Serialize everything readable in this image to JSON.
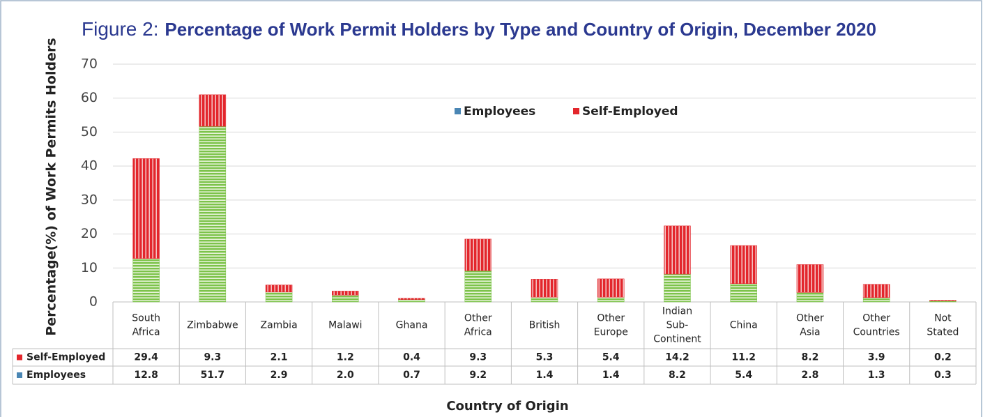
{
  "chart_data": {
    "type": "stacked_bar",
    "figure_label": "Figure 2:",
    "title": "Percentage of Work Permit Holders by Type and Country of Origin, December 2020",
    "y_label": "Percentage(%) of Work Permits Holders",
    "x_label": "Country of Origin",
    "categories": [
      "South Africa",
      "Zimbabwe",
      "Zambia",
      "Malawi",
      "Ghana",
      "Other Africa",
      "British",
      "Other Europe",
      "Indian Sub-Continent",
      "China",
      "Other Asia",
      "Other Countries",
      "Not Stated"
    ],
    "series": [
      {
        "name": "Employees",
        "color": "#7cc34a",
        "legend_color": "#4a86b4",
        "values": [
          12.8,
          51.7,
          2.9,
          2.0,
          0.7,
          9.2,
          1.4,
          1.4,
          8.2,
          5.4,
          2.8,
          1.3,
          0.3
        ],
        "value_labels": [
          "12.8",
          "51.7",
          "2.9",
          "2.0",
          "0.7",
          "9.2",
          "1.4",
          "1.4",
          "8.2",
          "5.4",
          "2.8",
          "1.3",
          "0.3"
        ]
      },
      {
        "name": "Self-Employed",
        "color": "#e3262c",
        "legend_color": "#e3262c",
        "values": [
          29.4,
          9.3,
          2.1,
          1.2,
          0.4,
          9.3,
          5.3,
          5.4,
          14.2,
          11.2,
          8.2,
          3.9,
          0.2
        ],
        "value_labels": [
          "29.4",
          "9.3",
          "2.1",
          "1.2",
          "0.4",
          "9.3",
          "5.3",
          "5.4",
          "14.2",
          "11.2",
          "8.2",
          "3.9",
          "0.2"
        ]
      }
    ],
    "ylim": [
      0,
      70
    ],
    "yticks": [
      0,
      10,
      20,
      30,
      40,
      50,
      60,
      70
    ],
    "grid": true
  }
}
